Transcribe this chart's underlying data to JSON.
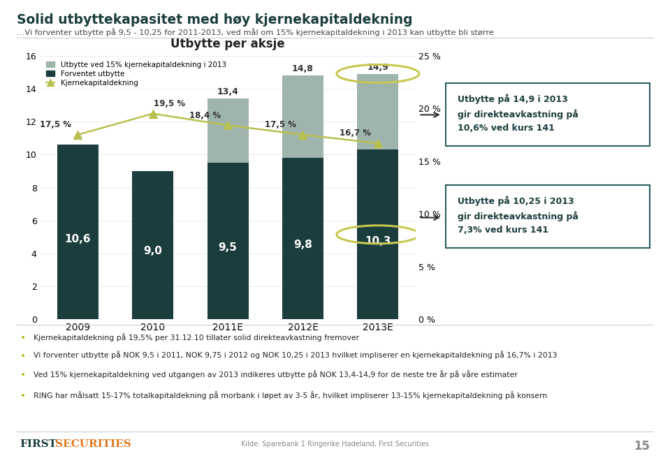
{
  "title": "Utbytte per aksje",
  "slide_title": "Solid utbyttekapasitet med høy kjernekapitaldekning",
  "slide_subtitle": "…Vi forventer utbytte på 9,5 - 10,25 for 2011-2013, ved mål om 15% kjernekapitaldekning i 2013 kan utbytte bli større",
  "categories": [
    "2009",
    "2010",
    "2011E",
    "2012E",
    "2013E"
  ],
  "bar_bottom_values": [
    10.6,
    9.0,
    9.5,
    9.8,
    10.3
  ],
  "bar_top_values": [
    0.0,
    0.0,
    3.9,
    5.0,
    4.6
  ],
  "bar_total_labels": [
    10.6,
    9.0,
    13.4,
    14.8,
    14.9
  ],
  "bar_bottom_color": "#1c3d3d",
  "bar_top_color": "#a0b4ae",
  "line_values": [
    17.5,
    19.5,
    18.4,
    17.5,
    16.7
  ],
  "line_color": "#b8c050",
  "legend_labels": [
    "Utbytte ved 15% kjernekapitaldekning i 2013",
    "Forventet utbytte",
    "Kjernekapitaldekning"
  ],
  "ylim_left": [
    0,
    16
  ],
  "ylim_right": [
    0,
    25
  ],
  "yticks_left": [
    0,
    2,
    4,
    6,
    8,
    10,
    12,
    14,
    16
  ],
  "ytick_right_labels": [
    "0 %",
    "5 %",
    "10 %",
    "15 %",
    "20 %",
    "25 %"
  ],
  "background_color": "#ffffff",
  "box1_text": "Utbytte på 14,9 i 2013\ngir direkteavkastning på\n10,6% ved kurs 141",
  "box2_text": "Utbytte på 10,25 i 2013\ngir direkteavkastning på\n7,3% ved kurs 141",
  "bullet_points": [
    "Kjernekapitaldekning på 19,5% per 31.12.10 tillater solid direkteavkastning fremover",
    "Vi forventer utbytte på NOK 9,5 i 2011, NOK 9,75 i 2012 og NOK 10,25 i 2013 hvilket impliserer en kjernekapitaldekning på 16,7% i 2013",
    "Ved 15% kjernekapitaldekning ved utgangen av 2013 indikeres utbytte på NOK 13,4-14,9 for de neste tre år på våre estimater",
    "RING har målsatt 15-17% totalkapitaldekning på morbank i løpet av 3-5 år, hvilket impliserer 13-15% kjernekapitaldekning på konsern"
  ],
  "footer_source": "Kilde: Sparebank 1 Ringerike Hadeland, First Securities",
  "footer_page": "15",
  "dark_teal": "#1c3d3d",
  "medium_teal": "#2a6060",
  "arrow_color": "#333333"
}
